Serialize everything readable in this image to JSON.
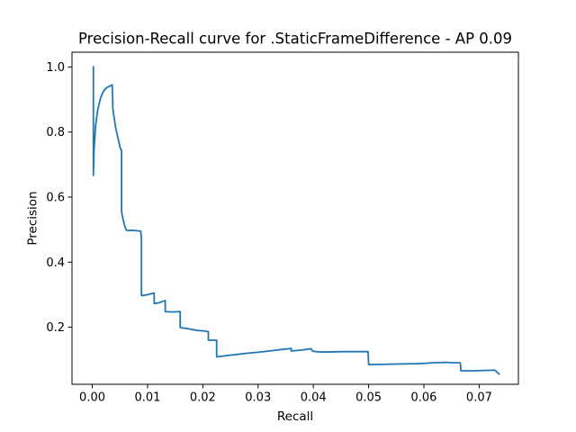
{
  "chart_data": {
    "type": "line",
    "title": "Precision-Recall curve for .StaticFrameDifference - AP 0.09",
    "xlabel": "Recall",
    "ylabel": "Precision",
    "xlim": [
      -0.00367,
      0.0771
    ],
    "ylim": [
      0.0245,
      1.0455
    ],
    "grid": false,
    "legend": "none",
    "line_color": "#1f77b4",
    "x_ticks": [
      {
        "value": 0.0,
        "label": "0.00"
      },
      {
        "value": 0.01,
        "label": "0.01"
      },
      {
        "value": 0.02,
        "label": "0.02"
      },
      {
        "value": 0.03,
        "label": "0.03"
      },
      {
        "value": 0.04,
        "label": "0.04"
      },
      {
        "value": 0.05,
        "label": "0.05"
      },
      {
        "value": 0.06,
        "label": "0.06"
      },
      {
        "value": 0.07,
        "label": "0.07"
      }
    ],
    "y_ticks": [
      {
        "value": 0.2,
        "label": "0.2"
      },
      {
        "value": 0.4,
        "label": "0.4"
      },
      {
        "value": 0.6,
        "label": "0.6"
      },
      {
        "value": 0.8,
        "label": "0.8"
      },
      {
        "value": 1.0,
        "label": "1.0"
      }
    ],
    "series": [
      {
        "x": [
          0.0002,
          0.0002,
          0.0003,
          0.0006,
          0.001,
          0.0015,
          0.002,
          0.0025,
          0.003,
          0.0036,
          0.0037,
          0.0037,
          0.0038,
          0.004,
          0.0042,
          0.0044,
          0.0046,
          0.0048,
          0.005,
          0.0052,
          0.0053,
          0.0053,
          0.0054,
          0.0056,
          0.0058,
          0.006,
          0.0062,
          0.0065,
          0.007,
          0.008,
          0.0088,
          0.0088,
          0.0089,
          0.0089,
          0.01,
          0.0112,
          0.0112,
          0.012,
          0.0132,
          0.0132,
          0.0145,
          0.0159,
          0.0159,
          0.0175,
          0.019,
          0.0205,
          0.021,
          0.021,
          0.0225,
          0.0225,
          0.024,
          0.026,
          0.028,
          0.03,
          0.032,
          0.034,
          0.0357,
          0.036,
          0.036,
          0.038,
          0.0396,
          0.0398,
          0.04,
          0.041,
          0.043,
          0.045,
          0.047,
          0.0498,
          0.0499,
          0.05,
          0.053,
          0.056,
          0.059,
          0.062,
          0.064,
          0.065,
          0.0664,
          0.0666,
          0.0667,
          0.069,
          0.071,
          0.0728,
          0.0731,
          0.0736
        ],
        "y": [
          1.0,
          0.667,
          0.74,
          0.82,
          0.87,
          0.905,
          0.925,
          0.935,
          0.94,
          0.945,
          0.9,
          0.88,
          0.86,
          0.84,
          0.815,
          0.8,
          0.785,
          0.77,
          0.755,
          0.745,
          0.745,
          0.555,
          0.545,
          0.53,
          0.515,
          0.505,
          0.498,
          0.497,
          0.498,
          0.497,
          0.495,
          0.485,
          0.48,
          0.297,
          0.3,
          0.305,
          0.273,
          0.275,
          0.282,
          0.248,
          0.247,
          0.248,
          0.199,
          0.195,
          0.19,
          0.188,
          0.186,
          0.16,
          0.16,
          0.109,
          0.112,
          0.116,
          0.12,
          0.123,
          0.127,
          0.131,
          0.134,
          0.135,
          0.127,
          0.13,
          0.134,
          0.128,
          0.126,
          0.124,
          0.124,
          0.125,
          0.125,
          0.125,
          0.125,
          0.085,
          0.086,
          0.087,
          0.088,
          0.091,
          0.092,
          0.091,
          0.091,
          0.09,
          0.066,
          0.066,
          0.067,
          0.068,
          0.064,
          0.056
        ]
      }
    ]
  }
}
